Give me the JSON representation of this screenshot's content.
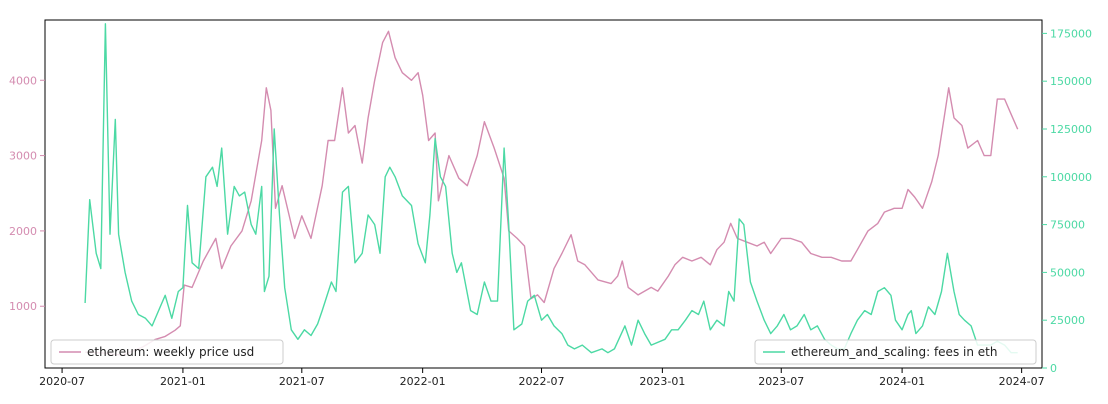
{
  "chart_data": {
    "type": "line",
    "title": "",
    "xlabel": "",
    "x_tick_labels": [
      "2020-07",
      "2021-01",
      "2021-07",
      "2022-01",
      "2022-07",
      "2023-01",
      "2023-07",
      "2024-01",
      "2024-07"
    ],
    "x_tick_dates": [
      "2020-07-01",
      "2021-01-01",
      "2021-07-01",
      "2022-01-01",
      "2022-07-01",
      "2023-01-01",
      "2023-07-01",
      "2024-01-01",
      "2024-07-01"
    ],
    "xlim": [
      "2020-06-05",
      "2024-08-01"
    ],
    "grid": false,
    "axes": {
      "left": {
        "ylim": [
          180,
          4800
        ],
        "ticks": [
          1000,
          2000,
          3000,
          4000
        ],
        "tick_labels": [
          "1000",
          "2000",
          "3000",
          "4000"
        ],
        "color": "#d48cb0"
      },
      "right": {
        "ylim": [
          0,
          182000
        ],
        "ticks": [
          0,
          25000,
          50000,
          75000,
          100000,
          125000,
          150000,
          175000
        ],
        "tick_labels": [
          "0",
          "25000",
          "50000",
          "75000",
          "100000",
          "125000",
          "150000",
          "175000"
        ],
        "color": "#4cd9a4"
      }
    },
    "series": [
      {
        "name": "ethereum: weekly price usd",
        "axis": "left",
        "color": "#d48cb0",
        "legend_position": "lower-left",
        "points": [
          [
            "2020-08-05",
            390
          ],
          [
            "2020-09-01",
            380
          ],
          [
            "2020-10-01",
            350
          ],
          [
            "2020-11-01",
            460
          ],
          [
            "2020-11-20",
            560
          ],
          [
            "2020-12-05",
            600
          ],
          [
            "2020-12-20",
            680
          ],
          [
            "2020-12-28",
            740
          ],
          [
            "2021-01-03",
            1280
          ],
          [
            "2021-01-15",
            1250
          ],
          [
            "2021-02-01",
            1600
          ],
          [
            "2021-02-20",
            1900
          ],
          [
            "2021-03-01",
            1500
          ],
          [
            "2021-03-15",
            1800
          ],
          [
            "2021-04-01",
            2000
          ],
          [
            "2021-04-15",
            2400
          ],
          [
            "2021-05-01",
            3200
          ],
          [
            "2021-05-08",
            3900
          ],
          [
            "2021-05-15",
            3600
          ],
          [
            "2021-05-22",
            2300
          ],
          [
            "2021-06-01",
            2600
          ],
          [
            "2021-06-20",
            1900
          ],
          [
            "2021-07-01",
            2200
          ],
          [
            "2021-07-15",
            1900
          ],
          [
            "2021-08-01",
            2600
          ],
          [
            "2021-08-10",
            3200
          ],
          [
            "2021-08-20",
            3200
          ],
          [
            "2021-09-01",
            3900
          ],
          [
            "2021-09-10",
            3300
          ],
          [
            "2021-09-20",
            3400
          ],
          [
            "2021-10-01",
            2900
          ],
          [
            "2021-10-10",
            3500
          ],
          [
            "2021-10-20",
            4000
          ],
          [
            "2021-11-01",
            4500
          ],
          [
            "2021-11-10",
            4650
          ],
          [
            "2021-11-20",
            4300
          ],
          [
            "2021-12-01",
            4100
          ],
          [
            "2021-12-15",
            4000
          ],
          [
            "2021-12-25",
            4100
          ],
          [
            "2022-01-01",
            3800
          ],
          [
            "2022-01-10",
            3200
          ],
          [
            "2022-01-20",
            3300
          ],
          [
            "2022-01-25",
            2400
          ],
          [
            "2022-02-10",
            3000
          ],
          [
            "2022-02-25",
            2700
          ],
          [
            "2022-03-10",
            2600
          ],
          [
            "2022-03-25",
            3000
          ],
          [
            "2022-04-05",
            3450
          ],
          [
            "2022-04-20",
            3100
          ],
          [
            "2022-05-05",
            2700
          ],
          [
            "2022-05-12",
            2000
          ],
          [
            "2022-05-25",
            1900
          ],
          [
            "2022-06-05",
            1800
          ],
          [
            "2022-06-15",
            1100
          ],
          [
            "2022-06-25",
            1150
          ],
          [
            "2022-07-05",
            1050
          ],
          [
            "2022-07-20",
            1500
          ],
          [
            "2022-08-01",
            1700
          ],
          [
            "2022-08-15",
            1950
          ],
          [
            "2022-08-25",
            1600
          ],
          [
            "2022-09-05",
            1550
          ],
          [
            "2022-09-15",
            1450
          ],
          [
            "2022-09-25",
            1350
          ],
          [
            "2022-10-15",
            1300
          ],
          [
            "2022-10-25",
            1400
          ],
          [
            "2022-11-01",
            1600
          ],
          [
            "2022-11-10",
            1250
          ],
          [
            "2022-11-25",
            1150
          ],
          [
            "2022-12-15",
            1250
          ],
          [
            "2022-12-25",
            1200
          ],
          [
            "2023-01-10",
            1400
          ],
          [
            "2023-01-20",
            1550
          ],
          [
            "2023-02-01",
            1650
          ],
          [
            "2023-02-15",
            1600
          ],
          [
            "2023-03-01",
            1650
          ],
          [
            "2023-03-15",
            1550
          ],
          [
            "2023-03-25",
            1750
          ],
          [
            "2023-04-05",
            1850
          ],
          [
            "2023-04-15",
            2100
          ],
          [
            "2023-04-25",
            1900
          ],
          [
            "2023-05-10",
            1850
          ],
          [
            "2023-05-25",
            1800
          ],
          [
            "2023-06-05",
            1850
          ],
          [
            "2023-06-15",
            1700
          ],
          [
            "2023-07-01",
            1900
          ],
          [
            "2023-07-15",
            1900
          ],
          [
            "2023-08-01",
            1850
          ],
          [
            "2023-08-15",
            1700
          ],
          [
            "2023-09-01",
            1650
          ],
          [
            "2023-09-15",
            1650
          ],
          [
            "2023-10-01",
            1600
          ],
          [
            "2023-10-15",
            1600
          ],
          [
            "2023-10-25",
            1750
          ],
          [
            "2023-11-10",
            2000
          ],
          [
            "2023-11-25",
            2100
          ],
          [
            "2023-12-05",
            2250
          ],
          [
            "2023-12-20",
            2300
          ],
          [
            "2024-01-01",
            2300
          ],
          [
            "2024-01-10",
            2550
          ],
          [
            "2024-01-20",
            2450
          ],
          [
            "2024-02-01",
            2300
          ],
          [
            "2024-02-15",
            2650
          ],
          [
            "2024-02-25",
            3000
          ],
          [
            "2024-03-05",
            3500
          ],
          [
            "2024-03-12",
            3900
          ],
          [
            "2024-03-20",
            3500
          ],
          [
            "2024-04-01",
            3400
          ],
          [
            "2024-04-10",
            3100
          ],
          [
            "2024-04-25",
            3200
          ],
          [
            "2024-05-05",
            3000
          ],
          [
            "2024-05-15",
            3000
          ],
          [
            "2024-05-25",
            3750
          ],
          [
            "2024-06-05",
            3750
          ],
          [
            "2024-06-15",
            3550
          ],
          [
            "2024-06-25",
            3350
          ]
        ]
      },
      {
        "name": "ethereum_and_scaling: fees in eth",
        "axis": "right",
        "color": "#4cd9a4",
        "legend_position": "lower-right",
        "points": [
          [
            "2020-08-05",
            34000
          ],
          [
            "2020-08-12",
            88000
          ],
          [
            "2020-08-22",
            60000
          ],
          [
            "2020-08-29",
            52000
          ],
          [
            "2020-09-05",
            180000
          ],
          [
            "2020-09-12",
            70000
          ],
          [
            "2020-09-20",
            130000
          ],
          [
            "2020-09-25",
            70000
          ],
          [
            "2020-10-05",
            50000
          ],
          [
            "2020-10-15",
            35000
          ],
          [
            "2020-10-25",
            28000
          ],
          [
            "2020-11-05",
            26000
          ],
          [
            "2020-11-15",
            22000
          ],
          [
            "2020-11-25",
            30000
          ],
          [
            "2020-12-05",
            38000
          ],
          [
            "2020-12-15",
            26000
          ],
          [
            "2020-12-25",
            40000
          ],
          [
            "2021-01-01",
            42000
          ],
          [
            "2021-01-08",
            85000
          ],
          [
            "2021-01-15",
            55000
          ],
          [
            "2021-01-25",
            52000
          ],
          [
            "2021-02-05",
            100000
          ],
          [
            "2021-02-15",
            105000
          ],
          [
            "2021-02-22",
            95000
          ],
          [
            "2021-03-01",
            115000
          ],
          [
            "2021-03-10",
            70000
          ],
          [
            "2021-03-20",
            95000
          ],
          [
            "2021-03-28",
            90000
          ],
          [
            "2021-04-05",
            92000
          ],
          [
            "2021-04-15",
            75000
          ],
          [
            "2021-04-22",
            70000
          ],
          [
            "2021-05-01",
            95000
          ],
          [
            "2021-05-05",
            40000
          ],
          [
            "2021-05-12",
            48000
          ],
          [
            "2021-05-20",
            125000
          ],
          [
            "2021-05-28",
            80000
          ],
          [
            "2021-06-05",
            42000
          ],
          [
            "2021-06-15",
            20000
          ],
          [
            "2021-06-25",
            15000
          ],
          [
            "2021-07-05",
            20000
          ],
          [
            "2021-07-15",
            17000
          ],
          [
            "2021-07-25",
            23000
          ],
          [
            "2021-08-01",
            30000
          ],
          [
            "2021-08-15",
            45000
          ],
          [
            "2021-08-22",
            40000
          ],
          [
            "2021-09-01",
            92000
          ],
          [
            "2021-09-10",
            95000
          ],
          [
            "2021-09-20",
            55000
          ],
          [
            "2021-10-01",
            60000
          ],
          [
            "2021-10-10",
            80000
          ],
          [
            "2021-10-20",
            75000
          ],
          [
            "2021-10-28",
            60000
          ],
          [
            "2021-11-05",
            100000
          ],
          [
            "2021-11-12",
            105000
          ],
          [
            "2021-11-20",
            100000
          ],
          [
            "2021-12-01",
            90000
          ],
          [
            "2021-12-15",
            85000
          ],
          [
            "2021-12-25",
            65000
          ],
          [
            "2022-01-05",
            55000
          ],
          [
            "2022-01-12",
            80000
          ],
          [
            "2022-01-20",
            120000
          ],
          [
            "2022-01-28",
            100000
          ],
          [
            "2022-02-05",
            95000
          ],
          [
            "2022-02-15",
            60000
          ],
          [
            "2022-02-22",
            50000
          ],
          [
            "2022-03-01",
            55000
          ],
          [
            "2022-03-15",
            30000
          ],
          [
            "2022-03-25",
            28000
          ],
          [
            "2022-04-05",
            45000
          ],
          [
            "2022-04-15",
            35000
          ],
          [
            "2022-04-25",
            35000
          ],
          [
            "2022-05-05",
            115000
          ],
          [
            "2022-05-12",
            75000
          ],
          [
            "2022-05-20",
            20000
          ],
          [
            "2022-06-01",
            23000
          ],
          [
            "2022-06-10",
            35000
          ],
          [
            "2022-06-20",
            38000
          ],
          [
            "2022-07-01",
            25000
          ],
          [
            "2022-07-10",
            28000
          ],
          [
            "2022-07-20",
            22000
          ],
          [
            "2022-08-01",
            18000
          ],
          [
            "2022-08-10",
            12000
          ],
          [
            "2022-08-20",
            10000
          ],
          [
            "2022-09-01",
            12000
          ],
          [
            "2022-09-15",
            8000
          ],
          [
            "2022-10-01",
            10000
          ],
          [
            "2022-10-10",
            8000
          ],
          [
            "2022-10-20",
            10000
          ],
          [
            "2022-11-05",
            22000
          ],
          [
            "2022-11-15",
            12000
          ],
          [
            "2022-11-25",
            25000
          ],
          [
            "2022-12-05",
            18000
          ],
          [
            "2022-12-15",
            12000
          ],
          [
            "2023-01-05",
            15000
          ],
          [
            "2023-01-15",
            20000
          ],
          [
            "2023-01-25",
            20000
          ],
          [
            "2023-02-05",
            25000
          ],
          [
            "2023-02-15",
            30000
          ],
          [
            "2023-02-25",
            28000
          ],
          [
            "2023-03-05",
            35000
          ],
          [
            "2023-03-15",
            20000
          ],
          [
            "2023-03-25",
            25000
          ],
          [
            "2023-04-05",
            22000
          ],
          [
            "2023-04-12",
            40000
          ],
          [
            "2023-04-20",
            35000
          ],
          [
            "2023-04-28",
            78000
          ],
          [
            "2023-05-05",
            75000
          ],
          [
            "2023-05-15",
            45000
          ],
          [
            "2023-05-25",
            35000
          ],
          [
            "2023-06-05",
            25000
          ],
          [
            "2023-06-15",
            18000
          ],
          [
            "2023-06-25",
            22000
          ],
          [
            "2023-07-05",
            28000
          ],
          [
            "2023-07-15",
            20000
          ],
          [
            "2023-07-25",
            22000
          ],
          [
            "2023-08-05",
            28000
          ],
          [
            "2023-08-15",
            20000
          ],
          [
            "2023-08-25",
            22000
          ],
          [
            "2023-09-05",
            15000
          ],
          [
            "2023-09-15",
            12000
          ],
          [
            "2023-09-25",
            10000
          ],
          [
            "2023-10-05",
            10000
          ],
          [
            "2023-10-15",
            18000
          ],
          [
            "2023-10-25",
            25000
          ],
          [
            "2023-11-05",
            30000
          ],
          [
            "2023-11-15",
            28000
          ],
          [
            "2023-11-25",
            40000
          ],
          [
            "2023-12-05",
            42000
          ],
          [
            "2023-12-15",
            38000
          ],
          [
            "2023-12-22",
            25000
          ],
          [
            "2024-01-01",
            20000
          ],
          [
            "2024-01-10",
            28000
          ],
          [
            "2024-01-15",
            30000
          ],
          [
            "2024-01-22",
            18000
          ],
          [
            "2024-02-01",
            22000
          ],
          [
            "2024-02-10",
            32000
          ],
          [
            "2024-02-20",
            28000
          ],
          [
            "2024-03-01",
            40000
          ],
          [
            "2024-03-10",
            60000
          ],
          [
            "2024-03-20",
            40000
          ],
          [
            "2024-03-28",
            28000
          ],
          [
            "2024-04-05",
            25000
          ],
          [
            "2024-04-15",
            22000
          ],
          [
            "2024-04-25",
            12000
          ],
          [
            "2024-05-15",
            12000
          ],
          [
            "2024-05-25",
            14000
          ],
          [
            "2024-06-05",
            12000
          ],
          [
            "2024-06-15",
            8000
          ],
          [
            "2024-06-25",
            8000
          ]
        ]
      }
    ]
  }
}
